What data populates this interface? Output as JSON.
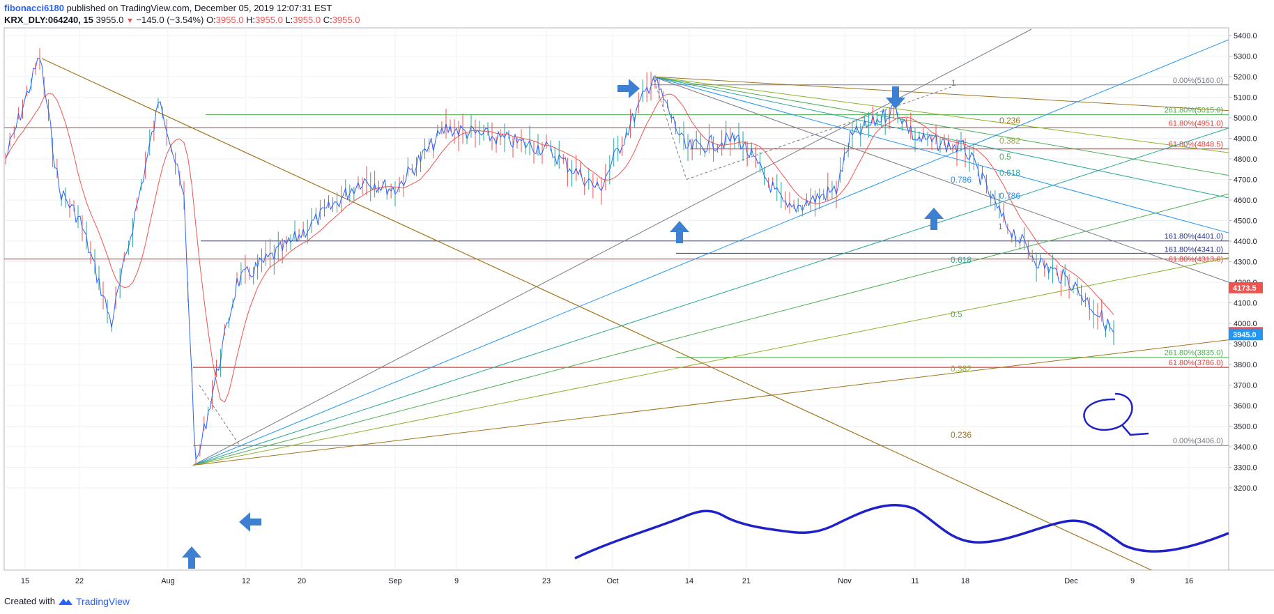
{
  "header": {
    "user": "fibonacci6180",
    "published_text": "published on TradingView.com, December 05, 2019 12:07:31 EST",
    "symbol": "KRX_DLY:064240, 15",
    "last": "3955.0",
    "change_arrow": "▼",
    "change": "−145.0 (−3.54%)",
    "o_label": "O:",
    "o_value": "3955.0",
    "h_label": "H:",
    "h_value": "3955.0",
    "l_label": "L:",
    "l_value": "3955.0",
    "c_label": "C:",
    "c_value": "3955.0"
  },
  "footer": {
    "created_with": "Created with",
    "brand": "TradingView"
  },
  "colors": {
    "up": "#26a69a",
    "down": "#ef5350",
    "price_line": "#2962ff",
    "ma": "#ef5350",
    "brand": "#2962ff"
  },
  "chart_data": {
    "type": "line",
    "y_axis": {
      "range": [
        3200,
        5400
      ],
      "ticks": [
        "5400.0",
        "5300.0",
        "5200.0",
        "5100.0",
        "5000.0",
        "4900.0",
        "4800.0",
        "4700.0",
        "4600.0",
        "4500.0",
        "4400.0",
        "4300.0",
        "4200.0",
        "4100.0",
        "4000.0",
        "3900.0",
        "3800.0",
        "3700.0",
        "3600.0",
        "3500.0",
        "3400.0",
        "3300.0",
        "3200.0"
      ]
    },
    "x_axis": {
      "ticks": [
        "15",
        "22",
        "Aug",
        "12",
        "20",
        "Sep",
        "9",
        "23",
        "Oct",
        "14",
        "21",
        "Nov",
        "11",
        "18",
        "Dec",
        "9",
        "16"
      ]
    },
    "price_labels": [
      {
        "text": "4173.5",
        "value": 4173.5,
        "color": "#ef5350"
      },
      {
        "text": "3955.0",
        "value": 3955.0,
        "color": "#ef5350"
      },
      {
        "text": "3945.0",
        "value": 3945.0,
        "color": "#2196f3"
      }
    ],
    "price_series": {
      "name": "",
      "points": [
        [
          "15",
          4800
        ],
        [
          "18",
          5300
        ],
        [
          "22",
          4650
        ],
        [
          "26",
          4500
        ],
        [
          "29",
          4000
        ],
        [
          "Aug-a",
          5100
        ],
        [
          "Aug-b",
          4600
        ],
        [
          "Aug-c",
          3300
        ],
        [
          "12",
          4200
        ],
        [
          "20",
          4400
        ],
        [
          "Sep-a",
          4700
        ],
        [
          "Sep",
          4650
        ],
        [
          "9",
          4950
        ],
        [
          "16",
          4900
        ],
        [
          "23",
          4850
        ],
        [
          "Oct-a",
          4650
        ],
        [
          "Oct",
          5200
        ],
        [
          "14",
          4850
        ],
        [
          "21",
          4900
        ],
        [
          "25",
          4550
        ],
        [
          "Nov-a",
          4650
        ],
        [
          "Nov",
          4900
        ],
        [
          "8",
          5050
        ],
        [
          "11",
          4900
        ],
        [
          "18",
          4850
        ],
        [
          "22",
          4500
        ],
        [
          "25",
          4300
        ],
        [
          "Dec-a",
          4200
        ],
        [
          "Dec",
          4050
        ],
        [
          "Dec-b",
          3955
        ]
      ]
    },
    "horizontal_levels": [
      {
        "label": "0.00%(5160.0)",
        "value": 5160,
        "color": "#787b86"
      },
      {
        "label": "261.80%(5015.0)",
        "value": 5015,
        "color": "#4caf50"
      },
      {
        "label": "61.80%(4951.0)",
        "value": 4951,
        "color": "#e53935"
      },
      {
        "label": "61.80%(4848.5)",
        "value": 4848.5,
        "color": "#e53935"
      },
      {
        "label": "161.80%(4401.0)",
        "value": 4401,
        "color": "#283593"
      },
      {
        "label": "161.80%(4341.0)",
        "value": 4341,
        "color": "#283593"
      },
      {
        "label": "61.80%(4313.0)",
        "value": 4313,
        "color": "#e53935"
      },
      {
        "label": "261.80%(3835.0)",
        "value": 3835,
        "color": "#4caf50"
      },
      {
        "label": "61.80%(3786.0)",
        "value": 3786,
        "color": "#e53935"
      },
      {
        "label": "0.00%(3406.0)",
        "value": 3406,
        "color": "#787b86"
      }
    ],
    "fan_labels_upper": [
      {
        "text": "1",
        "color": "#787b86"
      },
      {
        "text": "0.236",
        "color": "#a1741c"
      },
      {
        "text": "0.382",
        "color": "#8bb32a"
      },
      {
        "text": "0.5",
        "color": "#4caf50"
      },
      {
        "text": "0.618",
        "color": "#26a69a"
      },
      {
        "text": "0.786",
        "color": "#2196f3"
      },
      {
        "text": "0.786",
        "color": "#2196f3"
      },
      {
        "text": "1",
        "color": "#787b86"
      }
    ],
    "fan_labels_lower": [
      {
        "text": "0.618",
        "color": "#26a69a"
      },
      {
        "text": "0.5",
        "color": "#4caf50"
      },
      {
        "text": "0.382",
        "color": "#8bb32a"
      },
      {
        "text": "0.236",
        "color": "#a1741c"
      }
    ],
    "annotations": [
      "arrow-right",
      "arrow-down",
      "arrow-up",
      "arrow-up",
      "arrow-up",
      "arrow-left",
      "circle-mark",
      "wave-drawing"
    ]
  }
}
